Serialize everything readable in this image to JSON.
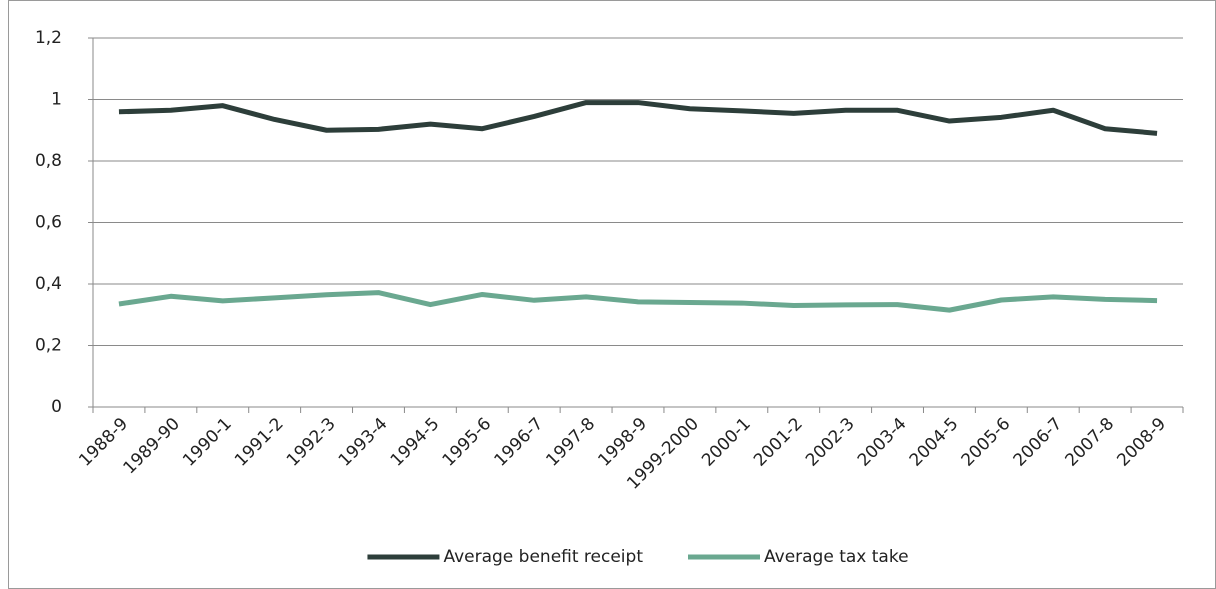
{
  "chart_data": {
    "type": "line",
    "categories": [
      "1988-9",
      "1989-90",
      "1990-1",
      "1991-2",
      "1992-3",
      "1993-4",
      "1994-5",
      "1995-6",
      "1996-7",
      "1997-8",
      "1998-9",
      "1999-2000",
      "2000-1",
      "2001-2",
      "2002-3",
      "2003-4",
      "2004-5",
      "2005-6",
      "2006-7",
      "2007-8",
      "2008-9"
    ],
    "series": [
      {
        "name": "Average benefit receipt",
        "color": "#2d3e3a",
        "values": [
          0.96,
          0.965,
          0.98,
          0.935,
          0.9,
          0.903,
          0.92,
          0.905,
          0.945,
          0.99,
          0.99,
          0.97,
          0.963,
          0.955,
          0.965,
          0.965,
          0.93,
          0.942,
          0.965,
          0.905,
          0.89
        ]
      },
      {
        "name": "Average tax take",
        "color": "#6aa890",
        "values": [
          0.335,
          0.36,
          0.345,
          0.355,
          0.365,
          0.372,
          0.333,
          0.366,
          0.347,
          0.358,
          0.342,
          0.34,
          0.338,
          0.33,
          0.332,
          0.333,
          0.315,
          0.348,
          0.358,
          0.35,
          0.346
        ]
      }
    ],
    "ylim": [
      0,
      1.2
    ],
    "yticks": [
      0,
      {
        "value": 0.2,
        "label": "0,2"
      },
      {
        "value": 0.4,
        "label": "0,4"
      },
      {
        "value": 0.6,
        "label": "0,6"
      },
      {
        "value": 0.8,
        "label": "0,8"
      },
      1,
      {
        "value": 1.2,
        "label": "1,2"
      }
    ],
    "grid": true,
    "legend": "bottom"
  }
}
